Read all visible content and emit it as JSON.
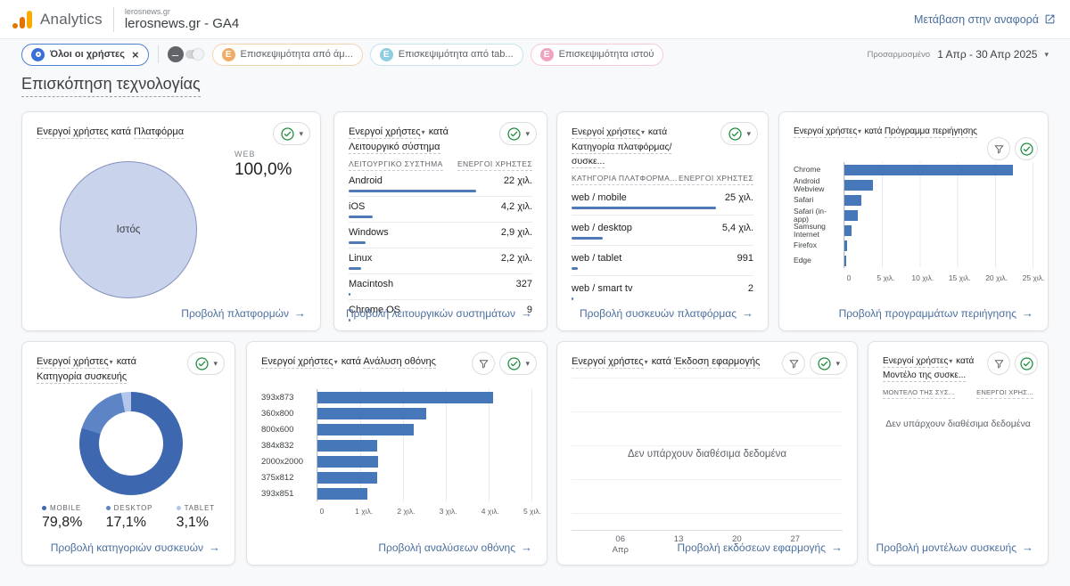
{
  "header": {
    "app_name": "Analytics",
    "property_label": "lerosnews.gr",
    "property_name": "lerosnews.gr - GA4",
    "go_to_report": "Μετάβαση στην αναφορά"
  },
  "filter_bar": {
    "all_users_chip": "Όλοι οι χρήστες",
    "comparison_chips": [
      {
        "label": "Επισκεψιμότητα από άμ...",
        "badge": "E"
      },
      {
        "label": "Επισκεψιμότητα από tab...",
        "badge": "E"
      },
      {
        "label": "Επισκεψιμότητα ιστού",
        "badge": "E"
      }
    ],
    "date_range": {
      "kind": "Προσαρμοσμένο",
      "value": "1 Απρ - 30 Απρ 2025"
    }
  },
  "page_title": "Επισκόπηση τεχνολογίας",
  "cards": {
    "platform": {
      "metric": "Ενεργοί χρήστες",
      "by": "κατά",
      "dimension": "Πλατφόρμα",
      "pie_label": "Ιστός",
      "stat_label": "WEB",
      "stat_value": "100,0%",
      "link": "Προβολή πλατφορμών"
    },
    "os": {
      "metric": "Ενεργοί χρήστες",
      "by": "κατά",
      "dimension": "Λειτουργικό σύστημα",
      "col_dimension": "ΛΕΙΤΟΥΡΓΙΚΟ ΣΥΣΤΗΜΑ",
      "col_metric": "ΕΝΕΡΓΟΙ ΧΡΗΣΤΕΣ",
      "rows": [
        {
          "label": "Android",
          "value": "22 χιλ.",
          "pct": 69.5
        },
        {
          "label": "iOS",
          "value": "4,2 χιλ.",
          "pct": 13.3
        },
        {
          "label": "Windows",
          "value": "2,9 χιλ.",
          "pct": 9.2
        },
        {
          "label": "Linux",
          "value": "2,2 χιλ.",
          "pct": 7.0
        },
        {
          "label": "Macintosh",
          "value": "327",
          "pct": 1.0
        },
        {
          "label": "Chrome OS",
          "value": "9",
          "pct": 0.3
        }
      ],
      "link": "Προβολή λειτουργικών συστημάτων"
    },
    "platform_device": {
      "metric": "Ενεργοί χρήστες",
      "by": "κατά",
      "dimension": "Κατηγορία πλατφόρμας/συσκε...",
      "col_dimension": "ΚΑΤΗΓΟΡΙΑ ΠΛΑΤΦΟΡΜΑ...",
      "col_metric": "ΕΝΕΡΓΟΙ ΧΡΗΣΤΕΣ",
      "rows": [
        {
          "label": "web / mobile",
          "value": "25 χιλ.",
          "pct": 79.6
        },
        {
          "label": "web / desktop",
          "value": "5,4 χιλ.",
          "pct": 17.2
        },
        {
          "label": "web / tablet",
          "value": "991",
          "pct": 3.2
        },
        {
          "label": "web / smart tv",
          "value": "2",
          "pct": 0.3
        }
      ],
      "link": "Προβολή συσκευών πλατφόρμας"
    },
    "browser": {
      "metric": "Ενεργοί χρήστες",
      "by": "κατά",
      "dimension": "Πρόγραμμα περιήγησης",
      "chart": {
        "type": "bar",
        "unit": "χιλ.",
        "axis_max_thousands": 25,
        "ticks": [
          "0",
          "5 χιλ.",
          "10 χιλ.",
          "15 χιλ.",
          "20 χιλ.",
          "25 χιλ."
        ],
        "bars": [
          {
            "label": "Chrome",
            "value_thousands": 22.4,
            "pct": 89.6
          },
          {
            "label": "Android Webview",
            "value_thousands": 3.8,
            "pct": 15.2
          },
          {
            "label": "Safari",
            "value_thousands": 2.2,
            "pct": 8.8
          },
          {
            "label": "Safari (in-app)",
            "value_thousands": 1.8,
            "pct": 7.2
          },
          {
            "label": "Samsung Internet",
            "value_thousands": 0.9,
            "pct": 3.6
          },
          {
            "label": "Firefox",
            "value_thousands": 0.35,
            "pct": 1.4
          },
          {
            "label": "Edge",
            "value_thousands": 0.2,
            "pct": 0.8
          }
        ]
      },
      "link": "Προβολή προγραμμάτων περιήγησης"
    },
    "device_category": {
      "metric": "Ενεργοί χρήστες",
      "by": "κατά",
      "dimension": "Κατηγορία συσκευής",
      "chart": {
        "type": "donut",
        "slices": [
          {
            "label": "MOBILE",
            "value": "79,8%",
            "pct": 79.8,
            "color": "#3d67ae"
          },
          {
            "label": "DESKTOP",
            "value": "17,1%",
            "pct": 17.1,
            "color": "#5d85c6"
          },
          {
            "label": "TABLET",
            "value": "3,1%",
            "pct": 3.1,
            "color": "#b2c7ea"
          }
        ]
      },
      "link": "Προβολή κατηγοριών συσκευών"
    },
    "resolution": {
      "metric": "Ενεργοί χρήστες",
      "by": "κατά",
      "dimension": "Ανάλυση οθόνης",
      "chart": {
        "type": "bar",
        "unit": "χιλ.",
        "axis_max_thousands": 5,
        "ticks": [
          "0",
          "1 χιλ.",
          "2 χιλ.",
          "3 χιλ.",
          "4 χιλ.",
          "5 χιλ."
        ],
        "bars": [
          {
            "label": "393x873",
            "value_thousands": 4.1,
            "pct": 82
          },
          {
            "label": "360x800",
            "value_thousands": 2.55,
            "pct": 51
          },
          {
            "label": "800x600",
            "value_thousands": 2.24,
            "pct": 44.8
          },
          {
            "label": "384x832",
            "value_thousands": 1.4,
            "pct": 28
          },
          {
            "label": "2000x2000",
            "value_thousands": 1.41,
            "pct": 28.2
          },
          {
            "label": "375x812",
            "value_thousands": 1.39,
            "pct": 27.8
          },
          {
            "label": "393x851",
            "value_thousands": 1.17,
            "pct": 23.4
          }
        ]
      },
      "link": "Προβολή αναλύσεων οθόνης"
    },
    "app_version": {
      "metric": "Ενεργοί χρήστες",
      "by": "κατά",
      "dimension": "Έκδοση εφαρμογής",
      "no_data": "Δεν υπάρχουν διαθέσιμα δεδομένα",
      "date_ticks": [
        {
          "day": "06",
          "month": "Απρ"
        },
        {
          "day": "13",
          "month": ""
        },
        {
          "day": "20",
          "month": ""
        },
        {
          "day": "27",
          "month": ""
        }
      ],
      "link": "Προβολή εκδόσεων εφαρμογής"
    },
    "device_model": {
      "metric": "Ενεργοί χρήστες",
      "by": "κατά",
      "dimension": "Μοντέλο της συσκε...",
      "col_dimension": "ΜΟΝΤΕΛΟ ΤΗΣ ΣΥΣ...",
      "col_metric": "ΕΝΕΡΓΟΙ ΧΡΗΣ...",
      "no_data": "Δεν υπάρχουν διαθέσιμα δεδομένα",
      "link": "Προβολή μοντέλων συσκευής"
    }
  },
  "colors": {
    "bar_blue": "#4677b8",
    "mini_bar_blue": "#4e7ab8",
    "pie_fill": "#c9d3ec",
    "link_blue": "#4a6e9e",
    "check_green": "#1e8e3e",
    "logo_orange": "#e37400",
    "logo_amber": "#f9ab00"
  }
}
